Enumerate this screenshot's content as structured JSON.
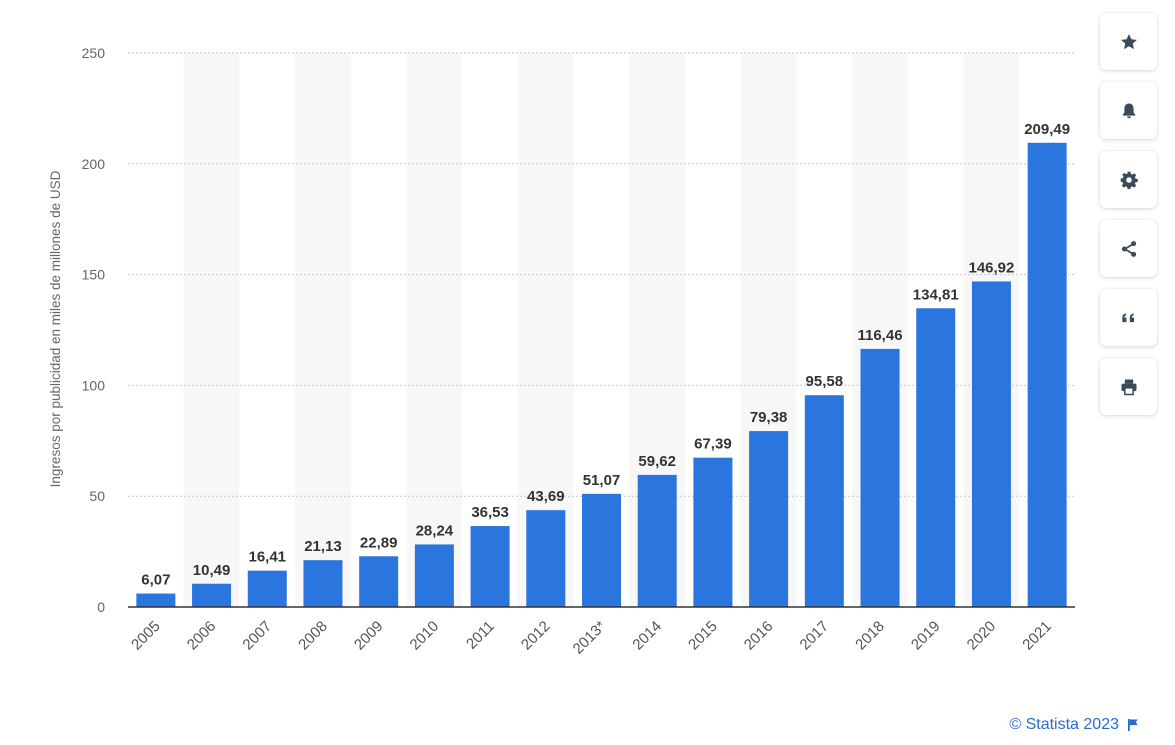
{
  "colors": {
    "bar": "#2b76de",
    "band": "#f7f7f7",
    "grid": "#c8c8c8",
    "axis": "#333333",
    "accent": "#2a6ccc",
    "icon": "#3a4b5c"
  },
  "toolbar": {
    "buttons": [
      {
        "name": "favorite-button",
        "icon": "star-icon"
      },
      {
        "name": "notification-button",
        "icon": "bell-icon"
      },
      {
        "name": "settings-button",
        "icon": "gear-icon"
      },
      {
        "name": "share-button",
        "icon": "share-icon"
      },
      {
        "name": "cite-button",
        "icon": "quote-icon"
      },
      {
        "name": "print-button",
        "icon": "print-icon"
      }
    ]
  },
  "footer": {
    "credit": "© Statista 2023",
    "flag_icon": "flag-icon"
  },
  "chart_data": {
    "type": "bar",
    "title": "",
    "xlabel": "",
    "ylabel": "Ingresos por publicidad en miles de millones de USD",
    "ylim": [
      0,
      250
    ],
    "yticks": [
      0,
      50,
      100,
      150,
      200,
      250
    ],
    "grid": true,
    "categories": [
      "2005",
      "2006",
      "2007",
      "2008",
      "2009",
      "2010",
      "2011",
      "2012",
      "2013*",
      "2014",
      "2015",
      "2016",
      "2017",
      "2018",
      "2019",
      "2020",
      "2021"
    ],
    "values": [
      6.07,
      10.49,
      16.41,
      21.13,
      22.89,
      28.24,
      36.53,
      43.69,
      51.07,
      59.62,
      67.39,
      79.38,
      95.58,
      116.46,
      134.81,
      146.92,
      209.49
    ],
    "value_labels": [
      "6,07",
      "10,49",
      "16,41",
      "21,13",
      "22,89",
      "28,24",
      "36,53",
      "43,69",
      "51,07",
      "59,62",
      "67,39",
      "79,38",
      "95,58",
      "116,46",
      "134,81",
      "146,92",
      "209,49"
    ]
  }
}
